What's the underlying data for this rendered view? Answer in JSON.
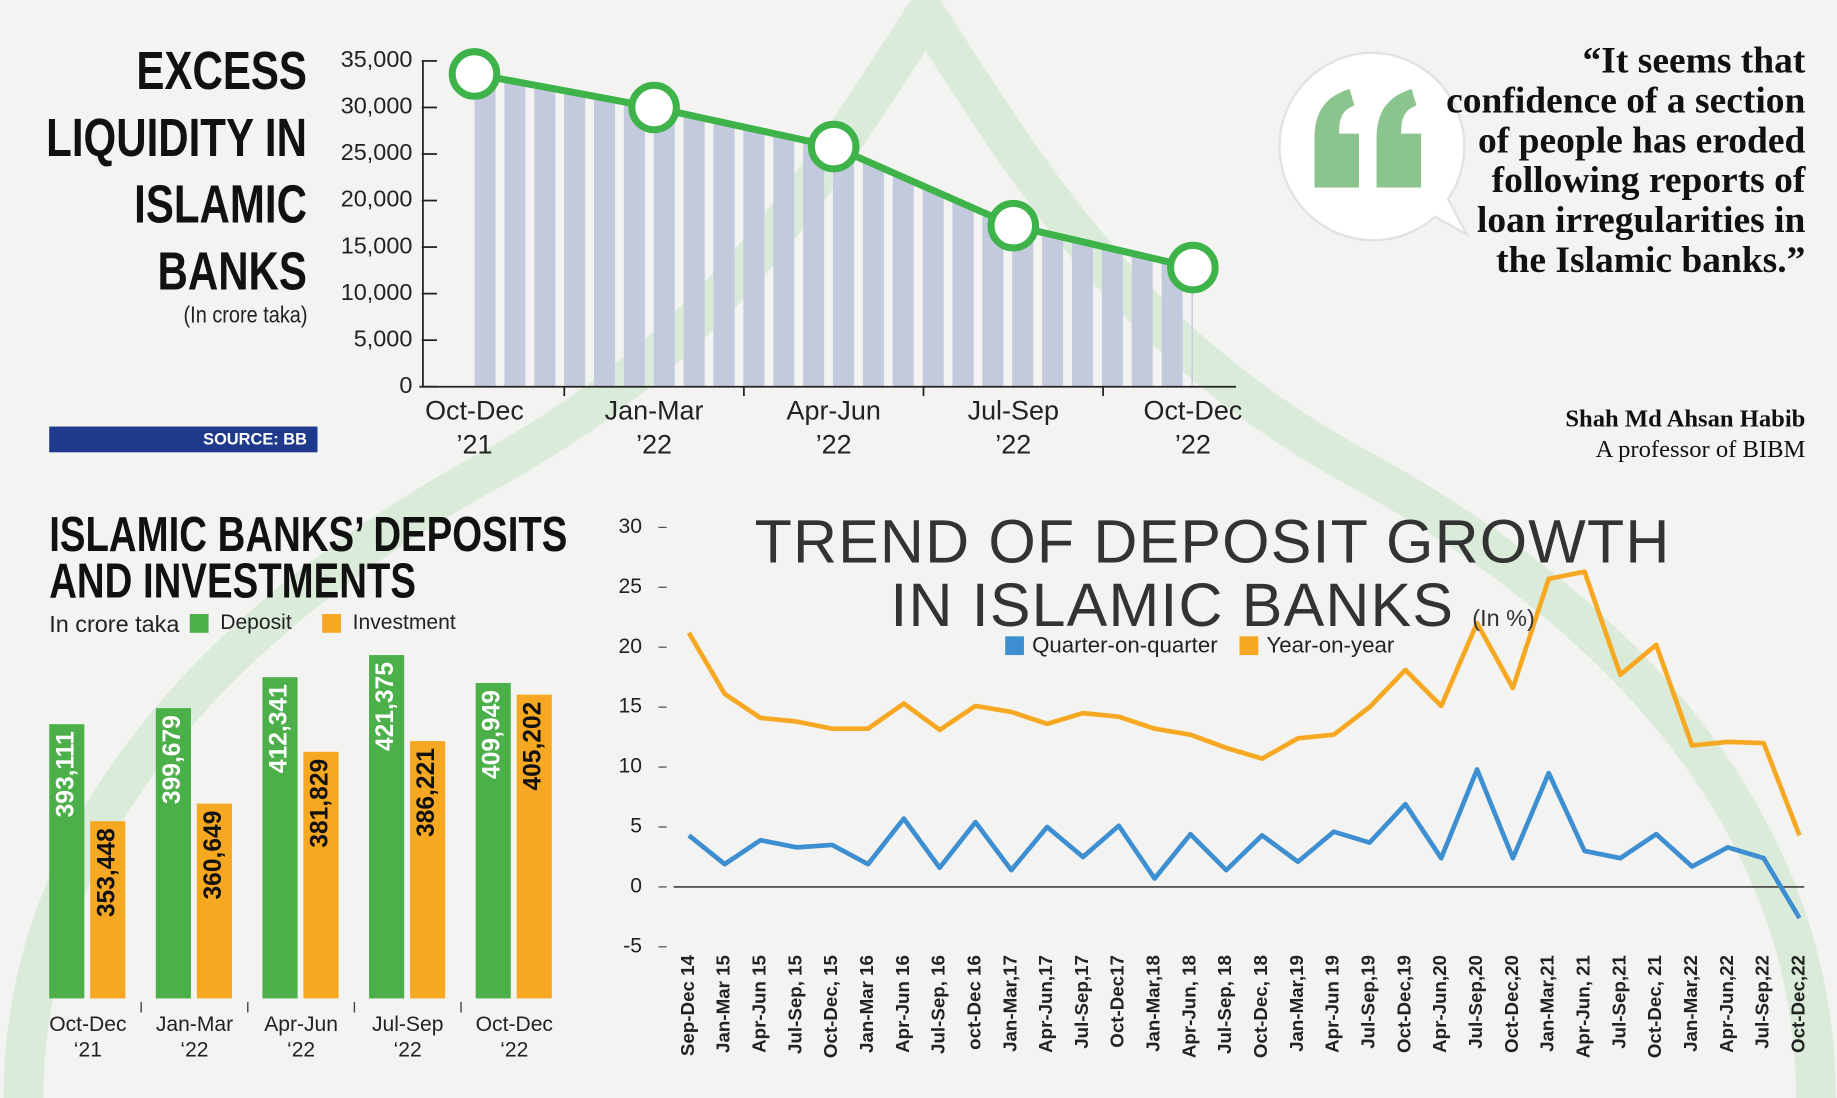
{
  "chart_data": [
    {
      "type": "area",
      "title": "EXCESS LIQUIDITY IN ISLAMIC BANKS",
      "subtitle": "(In crore taka)",
      "categories": [
        [
          "Oct-Dec",
          "’21"
        ],
        [
          "Jan-Mar",
          "’22"
        ],
        [
          "Apr-Jun",
          "’22"
        ],
        [
          "Jul-Sep",
          "’22"
        ],
        [
          "Oct-Dec",
          "’22"
        ]
      ],
      "values": [
        33600,
        30000,
        25800,
        17300,
        12800
      ],
      "color": "#3db34a",
      "area_color": "#bfc6dc",
      "ylim": [
        0,
        35000
      ],
      "yticks": [
        0,
        {
          "value": 5000,
          "label": "5,000"
        },
        {
          "value": 10000,
          "label": "10,000"
        },
        {
          "value": 15000,
          "label": "15,000"
        },
        {
          "value": 20000,
          "label": "20,000"
        },
        {
          "value": 25000,
          "label": "25,000"
        },
        {
          "value": 30000,
          "label": "30,000"
        },
        {
          "value": 35000,
          "label": "35,000"
        }
      ]
    },
    {
      "type": "bar",
      "title": "ISLAMIC BANKS’ DEPOSITS AND INVESTMENTS",
      "subtitle": "In crore taka",
      "categories": [
        [
          "Oct-Dec",
          "‘21"
        ],
        [
          "Jan-Mar",
          "‘22"
        ],
        [
          "Apr-Jun",
          "‘22"
        ],
        [
          "Jul-Sep",
          "‘22"
        ],
        [
          "Oct-Dec",
          "‘22"
        ]
      ],
      "ylim": [
        281000,
        430000
      ],
      "series": [
        {
          "name": "Deposit",
          "color": "#4cb04a",
          "values": [
            393111,
            399679,
            412341,
            421375,
            409949
          ],
          "value_labels": [
            "393,111",
            "399,679",
            "412,341",
            "421,375",
            "409,949"
          ]
        },
        {
          "name": "Investment",
          "color": "#f7a823",
          "values": [
            353448,
            360649,
            381829,
            386221,
            405202
          ],
          "value_labels": [
            "353,448",
            "360,649",
            "381,829",
            "386,221",
            "405,202"
          ]
        }
      ]
    },
    {
      "type": "line",
      "title": "TREND OF DEPOSIT GROWTH IN ISLAMIC BANKS",
      "subtitle": "(In %)",
      "categories": [
        "Sep-Dec 14",
        "Jan-Mar 15",
        "Apr-Jun 15",
        "Jul-Sep, 15",
        "Oct-Dec, 15",
        "Jan-Mar 16",
        "Apr-Jun 16",
        "Jul-Sep, 16",
        "oct-Dec 16",
        "Jan-Mar,17",
        "Apr-Jun,17",
        "Jul-Sep,17",
        "Oct-Dec17",
        "Jan-Mar,18",
        "Apr-Jun, 18",
        "Jul-Sep, 18",
        "Oct-Dec, 18",
        "Jan-Mar,19",
        "Apr-Jun 19",
        "Jul-Sep,19",
        "Oct-Dec,19",
        "Apr-Jun,20",
        "Jul-Sep,20",
        "Oct-Dec,20",
        "Jan-Mar,21",
        "Apr-Jun, 21",
        "Jul-Sep,21",
        "Oct-Dec, 21",
        "Jan-Mar,22",
        "Apr-Jun,22",
        "Jul-Sep,22",
        "Oct-Dec,22"
      ],
      "ylim": [
        -5,
        30
      ],
      "yticks": [
        -5,
        0,
        5,
        10,
        15,
        20,
        25,
        30
      ],
      "series": [
        {
          "name": "Quarter-on-quarter",
          "color": "#3d8fd1",
          "values": [
            4.3,
            1.9,
            3.9,
            3.3,
            3.5,
            1.9,
            5.7,
            1.6,
            5.4,
            1.4,
            5.0,
            2.5,
            5.1,
            0.7,
            4.4,
            1.4,
            4.3,
            2.1,
            4.6,
            3.7,
            6.9,
            2.4,
            9.8,
            2.4,
            9.5,
            3.0,
            2.4,
            4.4,
            1.7,
            3.3,
            2.4,
            -2.6
          ]
        },
        {
          "name": "Year-on-year",
          "color": "#f7a823",
          "values": [
            21.2,
            16.1,
            14.1,
            13.8,
            13.2,
            13.2,
            15.3,
            13.1,
            15.1,
            14.6,
            13.6,
            14.5,
            14.2,
            13.2,
            12.7,
            11.6,
            10.7,
            12.4,
            12.7,
            15.0,
            18.1,
            15.1,
            22.0,
            16.6,
            25.7,
            26.3,
            17.7,
            20.2,
            11.8,
            12.1,
            12.0,
            4.3
          ]
        }
      ]
    }
  ],
  "source": "SOURCE: BB",
  "quote": {
    "text": "“It seems that confidence of a section of people has eroded following reports of loan irregularities in the Islamic banks.”",
    "author": "Shah Md Ahsan Habib",
    "role": "A professor of BIBM"
  }
}
